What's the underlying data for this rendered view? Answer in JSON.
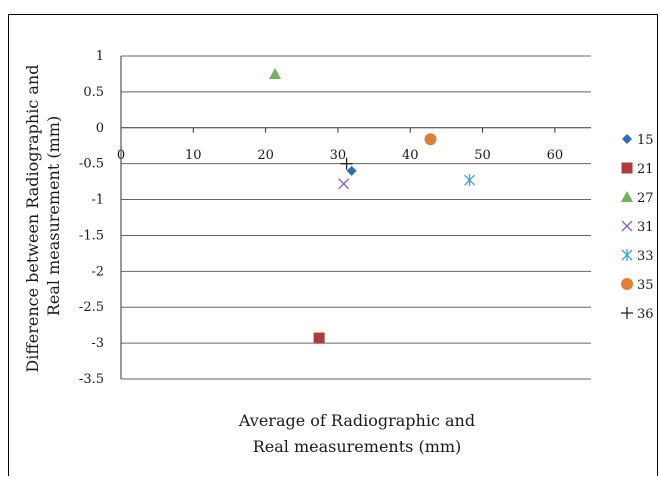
{
  "chart_data": {
    "type": "scatter",
    "title": "",
    "xlabel": [
      "Average of Radiographic and",
      "Real measurements (mm)"
    ],
    "ylabel": [
      "Difference between Radiographic and",
      "Real measurement (mm)"
    ],
    "xlim": [
      0,
      65
    ],
    "ylim": [
      -3.5,
      1
    ],
    "xticks": [
      "0",
      "10",
      "20",
      "30",
      "40",
      "50",
      "60"
    ],
    "yticks": [
      "1",
      "0.5",
      "0",
      "-0.5",
      "-1",
      "-1.5",
      "-2",
      "-2.5",
      "-3",
      "-3.5"
    ],
    "grid": "horizontal",
    "legend_position": "right",
    "series": [
      {
        "name": "15",
        "marker": "diamond",
        "color": "#2e6db4",
        "x": 31.9,
        "y": -0.6
      },
      {
        "name": "21",
        "marker": "square",
        "color": "#b03a3a",
        "x": 27.4,
        "y": -2.93
      },
      {
        "name": "27",
        "marker": "triangle",
        "color": "#72b35a",
        "x": 21.3,
        "y": 0.75
      },
      {
        "name": "31",
        "marker": "x",
        "color": "#8e5fb2",
        "x": 30.8,
        "y": -0.78
      },
      {
        "name": "33",
        "marker": "asterisk",
        "color": "#2ea8c9",
        "x": 48.2,
        "y": -0.73
      },
      {
        "name": "35",
        "marker": "circle",
        "color": "#e07f36",
        "x": 42.8,
        "y": -0.16
      },
      {
        "name": "36",
        "marker": "plus",
        "color": "#222222",
        "x": 31.2,
        "y": -0.5
      }
    ]
  }
}
